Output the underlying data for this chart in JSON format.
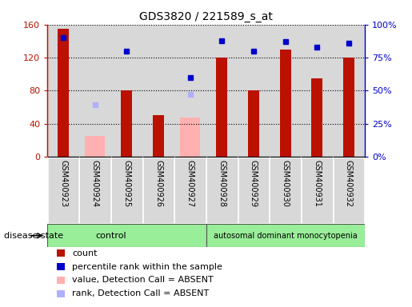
{
  "title": "GDS3820 / 221589_s_at",
  "samples": [
    "GSM400923",
    "GSM400924",
    "GSM400925",
    "GSM400926",
    "GSM400927",
    "GSM400928",
    "GSM400929",
    "GSM400930",
    "GSM400931",
    "GSM400932"
  ],
  "count": [
    155,
    null,
    80,
    50,
    null,
    120,
    80,
    130,
    95,
    120
  ],
  "percentile_rank": [
    90,
    null,
    80,
    null,
    60,
    88,
    80,
    87,
    83,
    86
  ],
  "absent_value": [
    null,
    25,
    null,
    null,
    47,
    null,
    null,
    null,
    null,
    null
  ],
  "absent_rank": [
    null,
    39,
    null,
    null,
    47,
    null,
    null,
    null,
    null,
    null
  ],
  "control_count": 5,
  "disease_count": 5,
  "ylim_left": [
    0,
    160
  ],
  "ylim_right": [
    0,
    100
  ],
  "yticks_left": [
    0,
    40,
    80,
    120,
    160
  ],
  "yticks_right": [
    0,
    25,
    50,
    75,
    100
  ],
  "ytick_labels_left": [
    "0",
    "40",
    "80",
    "120",
    "160"
  ],
  "ytick_labels_right": [
    "0%",
    "25%",
    "50%",
    "75%",
    "100%"
  ],
  "color_count": "#bb1100",
  "color_rank": "#0000cc",
  "color_absent_value": "#ffb0b0",
  "color_absent_rank": "#b0b0ff",
  "color_control_bg": "#99ee99",
  "color_disease_bg": "#99ee99",
  "color_sample_bg": "#d8d8d8",
  "bar_width": 0.35,
  "disease_state_label": "disease state",
  "control_label": "control",
  "disease_label": "autosomal dominant monocytopenia",
  "legend_items": [
    {
      "label": "count",
      "color": "#bb1100"
    },
    {
      "label": "percentile rank within the sample",
      "color": "#0000cc"
    },
    {
      "label": "value, Detection Call = ABSENT",
      "color": "#ffb0b0"
    },
    {
      "label": "rank, Detection Call = ABSENT",
      "color": "#b0b0ff"
    }
  ]
}
